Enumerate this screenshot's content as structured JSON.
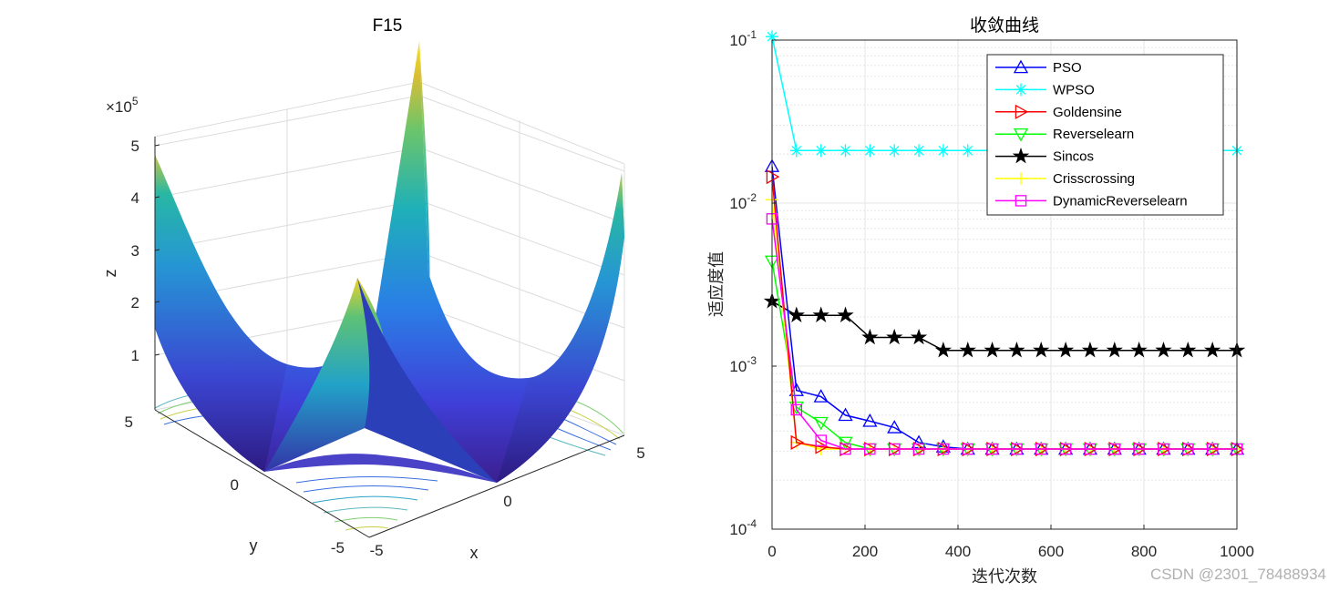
{
  "chart_data": [
    {
      "type": "surface3d",
      "title": "F15",
      "xlabel": "x",
      "ylabel": "y",
      "zlabel": "z",
      "x_ticks": [
        "-5",
        "0",
        "5"
      ],
      "y_ticks": [
        "-5",
        "0",
        "5"
      ],
      "z_ticks": [
        "1",
        "2",
        "3",
        "4",
        "5"
      ],
      "z_multiplier": "×10",
      "z_multiplier_exp": "5",
      "x_range": [
        -5,
        5
      ],
      "y_range": [
        -5,
        5
      ],
      "z_range": [
        0,
        5.5
      ],
      "surface_peaks_z": [
        5.5,
        5.0,
        4.8,
        2.5
      ]
    },
    {
      "type": "line",
      "title": "收敛曲线",
      "xlabel": "迭代次数",
      "ylabel": "适应度值",
      "yscale": "log",
      "xlim": [
        0,
        1000
      ],
      "ylim": [
        0.0001,
        0.1
      ],
      "x_ticks": [
        "0",
        "200",
        "400",
        "600",
        "800",
        "1000"
      ],
      "y_tick_base": "10",
      "y_tick_exps": [
        "-4",
        "-3",
        "-2",
        "-1"
      ],
      "legend_position": "top-right",
      "x": [
        0,
        52.6,
        105.3,
        157.9,
        210.5,
        263.2,
        315.8,
        368.4,
        421.1,
        473.7,
        526.3,
        578.9,
        631.6,
        684.2,
        736.8,
        789.5,
        842.1,
        894.7,
        947.4,
        1000
      ],
      "series": [
        {
          "name": "PSO",
          "color": "#0000ff",
          "marker": "triangle-up",
          "values": [
            0.0168,
            0.00071,
            0.00065,
            0.0005,
            0.00046,
            0.00042,
            0.00034,
            0.00032,
            0.00031,
            0.00031,
            0.00031,
            0.00031,
            0.00031,
            0.00031,
            0.00031,
            0.00031,
            0.00031,
            0.00031,
            0.00031,
            0.00031
          ]
        },
        {
          "name": "WPSO",
          "color": "#00ffff",
          "marker": "star",
          "values": [
            0.105,
            0.021,
            0.021,
            0.021,
            0.021,
            0.021,
            0.021,
            0.021,
            0.021,
            0.021,
            0.021,
            0.021,
            0.021,
            0.021,
            0.021,
            0.021,
            0.021,
            0.021,
            0.021,
            0.021
          ]
        },
        {
          "name": "Goldensine",
          "color": "#ff0000",
          "marker": "triangle-right",
          "values": [
            0.0145,
            0.00034,
            0.00032,
            0.00031,
            0.00031,
            0.00031,
            0.00031,
            0.00031,
            0.00031,
            0.00031,
            0.00031,
            0.00031,
            0.00031,
            0.00031,
            0.00031,
            0.00031,
            0.00031,
            0.00031,
            0.00031,
            0.00031
          ]
        },
        {
          "name": "Reverselearn",
          "color": "#00ff00",
          "marker": "triangle-down",
          "values": [
            0.0044,
            0.00056,
            0.00045,
            0.00034,
            0.00031,
            0.00031,
            0.00031,
            0.00031,
            0.00031,
            0.00031,
            0.00031,
            0.00031,
            0.00031,
            0.00031,
            0.00031,
            0.00031,
            0.00031,
            0.00031,
            0.00031,
            0.00031
          ]
        },
        {
          "name": "Sincos",
          "color": "#000000",
          "marker": "pentagram",
          "values": [
            0.0025,
            0.00205,
            0.00205,
            0.00205,
            0.0015,
            0.0015,
            0.0015,
            0.00125,
            0.00125,
            0.00125,
            0.00125,
            0.00125,
            0.00125,
            0.00125,
            0.00125,
            0.00125,
            0.00125,
            0.00125,
            0.00125,
            0.00125
          ]
        },
        {
          "name": "Crisscrossing",
          "color": "#ffff00",
          "marker": "plus",
          "values": [
            0.0105,
            0.00034,
            0.00031,
            0.00031,
            0.00031,
            0.00031,
            0.00031,
            0.00031,
            0.00031,
            0.00031,
            0.00031,
            0.00031,
            0.00031,
            0.00031,
            0.00031,
            0.00031,
            0.00031,
            0.00031,
            0.00031,
            0.00031
          ]
        },
        {
          "name": "DynamicReverselearn",
          "color": "#ff00ff",
          "marker": "square",
          "values": [
            0.008,
            0.00054,
            0.00035,
            0.00031,
            0.00031,
            0.00031,
            0.00031,
            0.00031,
            0.00031,
            0.00031,
            0.00031,
            0.00031,
            0.00031,
            0.00031,
            0.00031,
            0.00031,
            0.00031,
            0.00031,
            0.00031,
            0.00031
          ]
        }
      ]
    }
  ],
  "watermark": "CSDN @2301_78488934"
}
